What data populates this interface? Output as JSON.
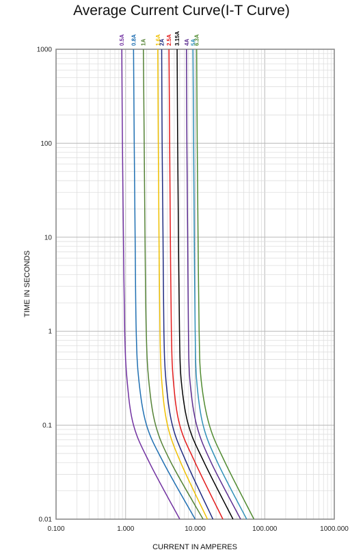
{
  "chart_data": {
    "type": "line",
    "title": "Average Current Curve(I-T Curve)",
    "xlabel": "CURRENT IN AMPERES",
    "ylabel": "TIME IN SECONDS",
    "x_scale": "log",
    "y_scale": "log",
    "xlim": [
      0.1,
      1000
    ],
    "ylim": [
      0.01,
      1000
    ],
    "grid": true,
    "x_ticks": [
      {
        "value": 0.1,
        "label": "0.100"
      },
      {
        "value": 1,
        "label": "1.000"
      },
      {
        "value": 10,
        "label": "10.000"
      },
      {
        "value": 100,
        "label": "100.000"
      },
      {
        "value": 1000,
        "label": "1000.000"
      }
    ],
    "y_ticks": [
      {
        "value": 0.01,
        "label": "0.01"
      },
      {
        "value": 0.1,
        "label": "0.1"
      },
      {
        "value": 1,
        "label": "1"
      },
      {
        "value": 10,
        "label": "10"
      },
      {
        "value": 100,
        "label": "100"
      },
      {
        "value": 1000,
        "label": "1000"
      }
    ],
    "series": [
      {
        "name": "0.5A",
        "color": "#7030a0",
        "points": [
          [
            0.88,
            1000
          ],
          [
            0.9,
            100
          ],
          [
            0.93,
            10
          ],
          [
            0.97,
            1
          ],
          [
            1.05,
            0.3
          ],
          [
            1.3,
            0.1
          ],
          [
            2.2,
            0.04
          ],
          [
            6,
            0.01
          ]
        ]
      },
      {
        "name": "0.8A",
        "color": "#1f6fb2",
        "points": [
          [
            1.3,
            1000
          ],
          [
            1.33,
            100
          ],
          [
            1.37,
            10
          ],
          [
            1.42,
            1
          ],
          [
            1.55,
            0.3
          ],
          [
            2,
            0.1
          ],
          [
            3.5,
            0.04
          ],
          [
            10,
            0.01
          ]
        ]
      },
      {
        "name": "1A",
        "color": "#548235",
        "points": [
          [
            1.8,
            1000
          ],
          [
            1.85,
            100
          ],
          [
            1.9,
            10
          ],
          [
            1.98,
            1
          ],
          [
            2.15,
            0.3
          ],
          [
            2.7,
            0.1
          ],
          [
            4.5,
            0.04
          ],
          [
            13,
            0.01
          ]
        ]
      },
      {
        "name": "1.6A",
        "color": "#f0c000",
        "points": [
          [
            2.9,
            1000
          ],
          [
            2.95,
            100
          ],
          [
            3.02,
            10
          ],
          [
            3.12,
            1
          ],
          [
            3.3,
            0.3
          ],
          [
            4,
            0.1
          ],
          [
            6.2,
            0.04
          ],
          [
            15,
            0.01
          ]
        ]
      },
      {
        "name": "2A",
        "color": "#1f2a80",
        "points": [
          [
            3.3,
            1000
          ],
          [
            3.35,
            100
          ],
          [
            3.45,
            10
          ],
          [
            3.55,
            1
          ],
          [
            3.8,
            0.3
          ],
          [
            4.7,
            0.1
          ],
          [
            7.5,
            0.04
          ],
          [
            18,
            0.01
          ]
        ]
      },
      {
        "name": "2.5A",
        "color": "#e31b1b",
        "points": [
          [
            4.2,
            1000
          ],
          [
            4.3,
            100
          ],
          [
            4.4,
            10
          ],
          [
            4.55,
            1
          ],
          [
            4.85,
            0.3
          ],
          [
            6,
            0.1
          ],
          [
            10,
            0.04
          ],
          [
            25,
            0.01
          ]
        ]
      },
      {
        "name": "3.15A",
        "color": "#000000",
        "points": [
          [
            5.5,
            1000
          ],
          [
            5.6,
            100
          ],
          [
            5.75,
            10
          ],
          [
            5.95,
            1
          ],
          [
            6.3,
            0.3
          ],
          [
            8,
            0.1
          ],
          [
            13.5,
            0.04
          ],
          [
            35,
            0.01
          ]
        ]
      },
      {
        "name": "4A",
        "color": "#5b2c8f",
        "points": [
          [
            7.5,
            1000
          ],
          [
            7.6,
            100
          ],
          [
            7.8,
            10
          ],
          [
            8,
            1
          ],
          [
            8.4,
            0.3
          ],
          [
            10.5,
            0.1
          ],
          [
            17,
            0.04
          ],
          [
            45,
            0.01
          ]
        ]
      },
      {
        "name": "5A",
        "color": "#2e8fb8",
        "points": [
          [
            9.3,
            1000
          ],
          [
            9.5,
            100
          ],
          [
            9.7,
            10
          ],
          [
            10,
            1
          ],
          [
            10.5,
            0.3
          ],
          [
            13,
            0.1
          ],
          [
            21,
            0.04
          ],
          [
            55,
            0.01
          ]
        ]
      },
      {
        "name": "6.3A",
        "color": "#4f8a2f",
        "points": [
          [
            10.5,
            1000
          ],
          [
            10.7,
            100
          ],
          [
            11,
            10
          ],
          [
            11.4,
            1
          ],
          [
            12.2,
            0.3
          ],
          [
            16,
            0.1
          ],
          [
            27,
            0.04
          ],
          [
            70,
            0.01
          ]
        ]
      }
    ]
  }
}
